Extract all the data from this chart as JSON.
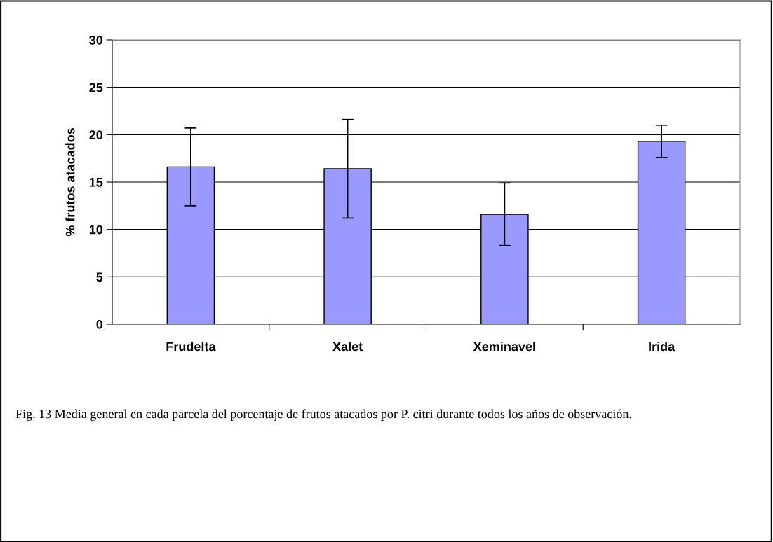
{
  "chart_data": {
    "type": "bar",
    "ylabel": "% frutos atacados",
    "categories": [
      "Frudelta",
      "Xalet",
      "Xeminavel",
      "Irida"
    ],
    "values": [
      16.6,
      16.4,
      11.6,
      19.3
    ],
    "errors": [
      4.1,
      5.2,
      3.3,
      1.7
    ],
    "color": "#9999ff",
    "ylim": [
      0,
      30
    ],
    "yticks": [
      0,
      5,
      10,
      15,
      20,
      25,
      30
    ],
    "grid": "y",
    "annotations": [
      "Fig. 13 Media general en cada parcela del porcentaje de frutos atacados por P. citri durante todos los años de observación."
    ]
  }
}
